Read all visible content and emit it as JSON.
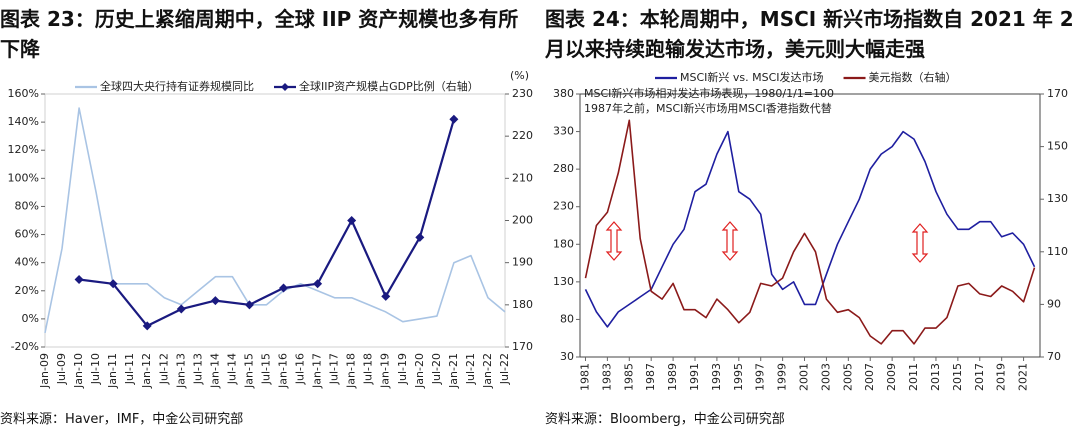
{
  "chart_data": [
    {
      "type": "line",
      "title": "图表 23：历史上紧缩周期中，全球 IIP 资产规模也多有所下降",
      "source": "资料来源：Haver，IMF，中金公司研究部",
      "categories": [
        "Jan-09",
        "Jul-09",
        "Jan-10",
        "Jul-10",
        "Jan-11",
        "Jul-11",
        "Jan-12",
        "Jul-12",
        "Jan-13",
        "Jul-13",
        "Jan-14",
        "Jul-14",
        "Jan-15",
        "Jul-15",
        "Jan-16",
        "Jul-16",
        "Jan-17",
        "Jul-17",
        "Jan-18",
        "Jul-18",
        "Jan-19",
        "Jul-19",
        "Jan-20",
        "Jul-20",
        "Jan-21",
        "Jul-21",
        "Jan-22",
        "Jul-22"
      ],
      "series": [
        {
          "name": "全球四大央行持有证券规模同比",
          "color": "#a9c4e4",
          "axis": "y",
          "values": [
            -10,
            50,
            150,
            90,
            25,
            25,
            25,
            15,
            10,
            20,
            30,
            30,
            10,
            10,
            20,
            25,
            20,
            15,
            15,
            10,
            5,
            -2,
            0,
            2,
            40,
            45,
            15,
            5
          ]
        },
        {
          "name": "全球IIP资产规模占GDP比例（右轴）",
          "color": "#1a1a80",
          "axis": "y2",
          "marker": "diamond",
          "x": [
            "Jan-10",
            "Jan-11",
            "Jan-12",
            "Jan-13",
            "Jan-14",
            "Jan-15",
            "Jan-16",
            "Jan-17",
            "Jan-18",
            "Jan-19",
            "Jan-20",
            "Jan-21"
          ],
          "values": [
            186,
            185,
            175,
            179,
            181,
            180,
            184,
            185,
            200,
            182,
            196,
            224
          ]
        }
      ],
      "ylim": [
        -20,
        160
      ],
      "yticks": [
        {
          "value": -20,
          "label": "-20%"
        },
        {
          "value": 0,
          "label": "0%"
        },
        {
          "value": 20,
          "label": "20%"
        },
        {
          "value": 40,
          "label": "40%"
        },
        {
          "value": 60,
          "label": "60%"
        },
        {
          "value": 80,
          "label": "80%"
        },
        {
          "value": 100,
          "label": "100%"
        },
        {
          "value": 120,
          "label": "120%"
        },
        {
          "value": 140,
          "label": "140%"
        },
        {
          "value": 160,
          "label": "160%"
        }
      ],
      "y2lim": [
        170,
        230
      ],
      "y2ticks": [
        170,
        180,
        190,
        200,
        210,
        220,
        230
      ],
      "y2_unit": "(%)",
      "legend": "top"
    },
    {
      "type": "line",
      "title": "图表 24：本轮周期中，MSCI 新兴市场指数自 2021 年 2 月以来持续跑输发达市场，美元则大幅走强",
      "source": "资料来源：Bloomberg，中金公司研究部",
      "annotations": [
        "MSCI新兴市场相对发达市场表现，1980/1/1=100",
        "1987年之前，MSCI新兴市场用MSCI香港指数代替"
      ],
      "x": [
        1981,
        1982,
        1983,
        1984,
        1985,
        1986,
        1987,
        1988,
        1989,
        1990,
        1991,
        1992,
        1993,
        1994,
        1995,
        1996,
        1997,
        1998,
        1999,
        2000,
        2001,
        2002,
        2003,
        2004,
        2005,
        2006,
        2007,
        2008,
        2009,
        2010,
        2011,
        2012,
        2013,
        2014,
        2015,
        2016,
        2017,
        2018,
        2019,
        2020,
        2021,
        2022
      ],
      "series": [
        {
          "name": "MSCI新兴 vs. MSCI发达市场",
          "color": "#1f1fa0",
          "axis": "y",
          "values": [
            120,
            90,
            70,
            90,
            100,
            110,
            120,
            150,
            180,
            200,
            250,
            260,
            300,
            330,
            250,
            240,
            220,
            140,
            120,
            130,
            100,
            100,
            140,
            180,
            210,
            240,
            280,
            300,
            310,
            330,
            320,
            290,
            250,
            220,
            200,
            200,
            210,
            210,
            190,
            195,
            180,
            150
          ]
        },
        {
          "name": "美元指数（右轴）",
          "color": "#8b1a1a",
          "axis": "y2",
          "values": [
            100,
            120,
            125,
            140,
            160,
            115,
            95,
            92,
            98,
            88,
            88,
            85,
            92,
            88,
            83,
            87,
            98,
            97,
            100,
            110,
            117,
            110,
            92,
            87,
            88,
            85,
            78,
            75,
            80,
            80,
            75,
            81,
            81,
            85,
            97,
            98,
            94,
            93,
            97,
            95,
            91,
            104
          ]
        }
      ],
      "xlim": [
        1980.5,
        2022.5
      ],
      "xticks": [
        1981,
        1983,
        1985,
        1987,
        1989,
        1991,
        1993,
        1995,
        1997,
        1999,
        2001,
        2003,
        2005,
        2007,
        2009,
        2011,
        2013,
        2015,
        2017,
        2019,
        2021
      ],
      "ylim": [
        30,
        380
      ],
      "yticks": [
        30,
        80,
        130,
        180,
        230,
        280,
        330,
        380
      ],
      "y2lim": [
        70,
        170
      ],
      "y2ticks": [
        70,
        90,
        110,
        130,
        150,
        170
      ],
      "legend": "top"
    }
  ]
}
